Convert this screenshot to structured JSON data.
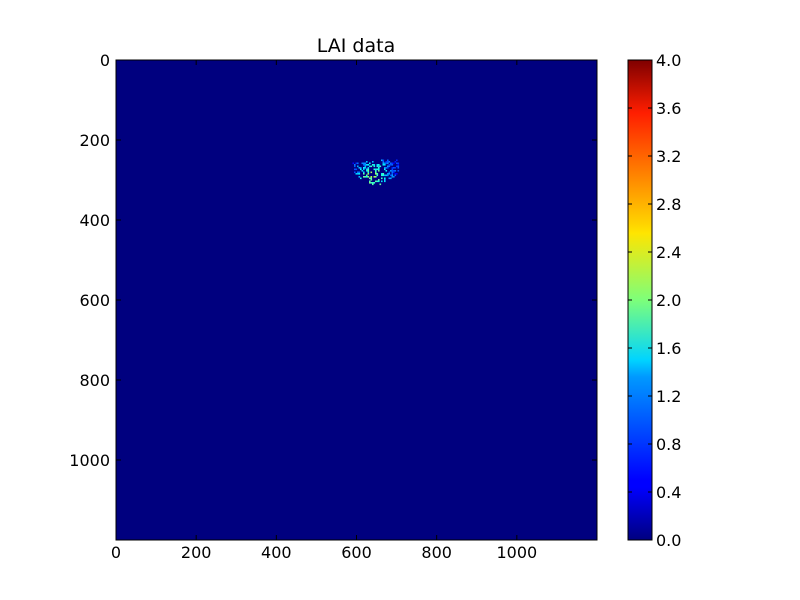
{
  "chart_data": {
    "type": "heatmap",
    "title": "LAI data",
    "xlabel": "",
    "ylabel": "",
    "x_ticks": [
      0,
      200,
      400,
      600,
      800,
      1000
    ],
    "y_ticks": [
      0,
      200,
      400,
      600,
      800,
      1000
    ],
    "xlim": [
      0,
      1200
    ],
    "ylim": [
      1200,
      0
    ],
    "grid": false,
    "colormap": "jet",
    "colorbar": {
      "min": 0.0,
      "max": 4.0,
      "ticks": [
        0.0,
        0.4,
        0.8,
        1.2,
        1.6,
        2.0,
        2.4,
        2.8,
        3.2,
        3.6,
        4.0
      ],
      "tick_labels": [
        "0.0",
        "0.4",
        "0.8",
        "1.2",
        "1.6",
        "2.0",
        "2.4",
        "2.8",
        "3.2",
        "3.6",
        "4.0"
      ]
    },
    "background_value": 0.0,
    "feature": {
      "x_range": [
        590,
        705
      ],
      "y_range": [
        245,
        310
      ],
      "value_range": [
        0.6,
        2.2
      ],
      "peak_x": 640,
      "peak_y": 290
    }
  }
}
